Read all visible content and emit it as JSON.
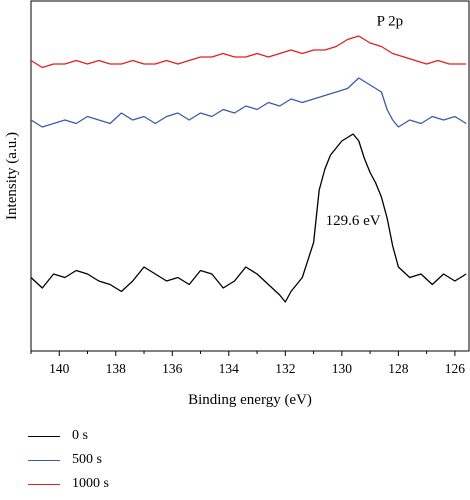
{
  "chart_data": {
    "type": "line",
    "title": "",
    "xlabel": "Binding energy (eV)",
    "ylabel": "Intensity (a.u.)",
    "x_reversed": true,
    "xlim": [
      141.0,
      125.5
    ],
    "ylim": [
      0,
      100
    ],
    "y_ticks_shown": false,
    "xticks": [
      140,
      138,
      136,
      134,
      132,
      130,
      128,
      126
    ],
    "annotations": [
      {
        "text": "P 2p",
        "x": 128.3,
        "y": 93
      },
      {
        "text": "129.6 eV",
        "x": 129.6,
        "y": 36
      }
    ],
    "legend_position": "below-plot",
    "series": [
      {
        "name": "0 s",
        "color": "#000000",
        "x": [
          141.0,
          140.6,
          140.2,
          139.8,
          139.4,
          139.0,
          138.6,
          138.2,
          137.8,
          137.4,
          137.0,
          136.6,
          136.2,
          135.8,
          135.4,
          135.0,
          134.6,
          134.2,
          133.8,
          133.4,
          133.0,
          132.6,
          132.2,
          132.0,
          131.8,
          131.4,
          131.0,
          130.8,
          130.6,
          130.4,
          130.2,
          130.0,
          129.8,
          129.6,
          129.4,
          129.2,
          129.0,
          128.8,
          128.6,
          128.4,
          128.2,
          128.0,
          127.6,
          127.2,
          126.8,
          126.4,
          126.0,
          125.6
        ],
        "y": [
          21,
          18,
          22,
          21,
          23,
          22,
          20,
          19,
          17,
          20,
          24,
          22,
          20,
          21,
          19,
          23,
          22,
          18,
          20,
          24,
          22,
          19,
          16,
          14,
          17,
          21,
          31,
          46,
          52,
          56,
          58,
          60,
          61,
          62,
          60,
          55,
          51,
          48,
          44,
          38,
          30,
          24,
          21,
          22,
          19,
          22,
          20,
          22
        ]
      },
      {
        "name": "500 s",
        "color": "#3b5ba9",
        "x": [
          141.0,
          140.6,
          140.2,
          139.8,
          139.4,
          139.0,
          138.6,
          138.2,
          137.8,
          137.4,
          137.0,
          136.6,
          136.2,
          135.8,
          135.4,
          135.0,
          134.6,
          134.2,
          133.8,
          133.4,
          133.0,
          132.6,
          132.2,
          131.8,
          131.4,
          131.0,
          130.6,
          130.2,
          129.8,
          129.4,
          129.0,
          128.6,
          128.4,
          128.2,
          128.0,
          127.6,
          127.2,
          126.8,
          126.4,
          126.0,
          125.6
        ],
        "y": [
          66,
          64,
          65,
          66,
          65,
          67,
          66,
          65,
          68,
          66,
          67,
          65,
          67,
          68,
          66,
          68,
          67,
          69,
          68,
          70,
          69,
          71,
          70,
          72,
          71,
          72,
          73,
          74,
          75,
          78,
          76,
          74,
          69,
          66,
          64,
          66,
          65,
          67,
          66,
          67,
          65
        ]
      },
      {
        "name": "1000 s",
        "color": "#e02020",
        "x": [
          141.0,
          140.6,
          140.2,
          139.8,
          139.4,
          139.0,
          138.6,
          138.2,
          137.8,
          137.4,
          137.0,
          136.6,
          136.2,
          135.8,
          135.4,
          135.0,
          134.6,
          134.2,
          133.8,
          133.4,
          133.0,
          132.6,
          132.2,
          131.8,
          131.4,
          131.0,
          130.6,
          130.2,
          129.8,
          129.4,
          129.0,
          128.6,
          128.2,
          127.8,
          127.4,
          127.0,
          126.6,
          126.2,
          125.6
        ],
        "y": [
          83,
          81,
          82,
          82,
          83,
          82,
          83,
          82,
          82,
          83,
          82,
          82,
          83,
          82,
          83,
          84,
          84,
          85,
          84,
          84,
          85,
          84,
          85,
          86,
          85,
          86,
          86,
          87,
          89,
          90,
          88,
          87,
          85,
          84,
          83,
          82,
          83,
          82,
          82
        ]
      }
    ]
  }
}
